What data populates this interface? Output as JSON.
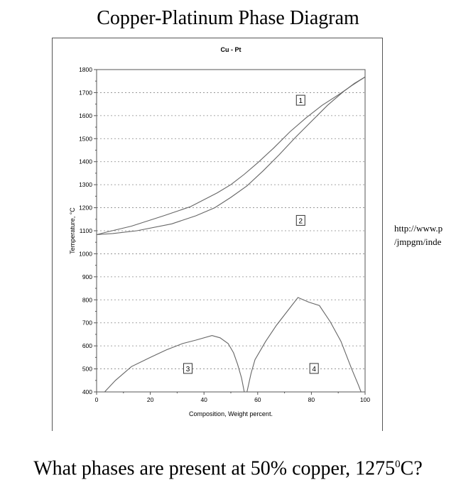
{
  "slide": {
    "title": "Copper-Platinum Phase Diagram",
    "url_note_line1": "http://www.p",
    "url_note_line2": "/jmpgm/inde",
    "question_pre": "What phases are present at 50% copper, 1275",
    "question_sup": "0",
    "question_post": "C?"
  },
  "chart_data": {
    "type": "line",
    "title": "Cu - Pt",
    "xlabel": "Composition, Weight percent.",
    "ylabel": "Temperature, °C",
    "xlim": [
      0,
      100
    ],
    "ylim": [
      400,
      1800
    ],
    "xticks": [
      0,
      20,
      40,
      60,
      80,
      100
    ],
    "yticks": [
      400,
      500,
      600,
      700,
      800,
      900,
      1000,
      1100,
      1200,
      1300,
      1400,
      1500,
      1600,
      1700,
      1800
    ],
    "grid": "horizontal-dotted",
    "series": [
      {
        "x": [
          0,
          4,
          13,
          25,
          35,
          45,
          50,
          55,
          60,
          66,
          72,
          78,
          84,
          90,
          95,
          100
        ],
        "y": [
          1083,
          1095,
          1120,
          1165,
          1205,
          1265,
          1300,
          1345,
          1395,
          1460,
          1530,
          1590,
          1645,
          1690,
          1730,
          1768
        ]
      },
      {
        "x": [
          0,
          6,
          15,
          28,
          37,
          44,
          50,
          56,
          62,
          68,
          74,
          80,
          86,
          92,
          96,
          100
        ],
        "y": [
          1083,
          1088,
          1100,
          1130,
          1165,
          1200,
          1245,
          1295,
          1360,
          1430,
          1505,
          1575,
          1645,
          1705,
          1740,
          1768
        ]
      },
      {
        "x": [
          3,
          7,
          13,
          20,
          26,
          32,
          37,
          43,
          46,
          49,
          51,
          52.5,
          54,
          55
        ],
        "y": [
          400,
          450,
          510,
          550,
          583,
          610,
          625,
          645,
          635,
          610,
          570,
          520,
          460,
          400
        ]
      },
      {
        "x": [
          56,
          57.5,
          59,
          63,
          67,
          71,
          75,
          79,
          83,
          87,
          91,
          95,
          97.5,
          98.5
        ],
        "y": [
          400,
          480,
          540,
          620,
          690,
          750,
          810,
          790,
          775,
          705,
          620,
          500,
          430,
          400
        ]
      }
    ],
    "region_labels": [
      {
        "text": "1",
        "x": 76,
        "y": 1667
      },
      {
        "text": "2",
        "x": 76,
        "y": 1145
      },
      {
        "text": "3",
        "x": 34,
        "y": 502
      },
      {
        "text": "4",
        "x": 81,
        "y": 502
      }
    ]
  }
}
